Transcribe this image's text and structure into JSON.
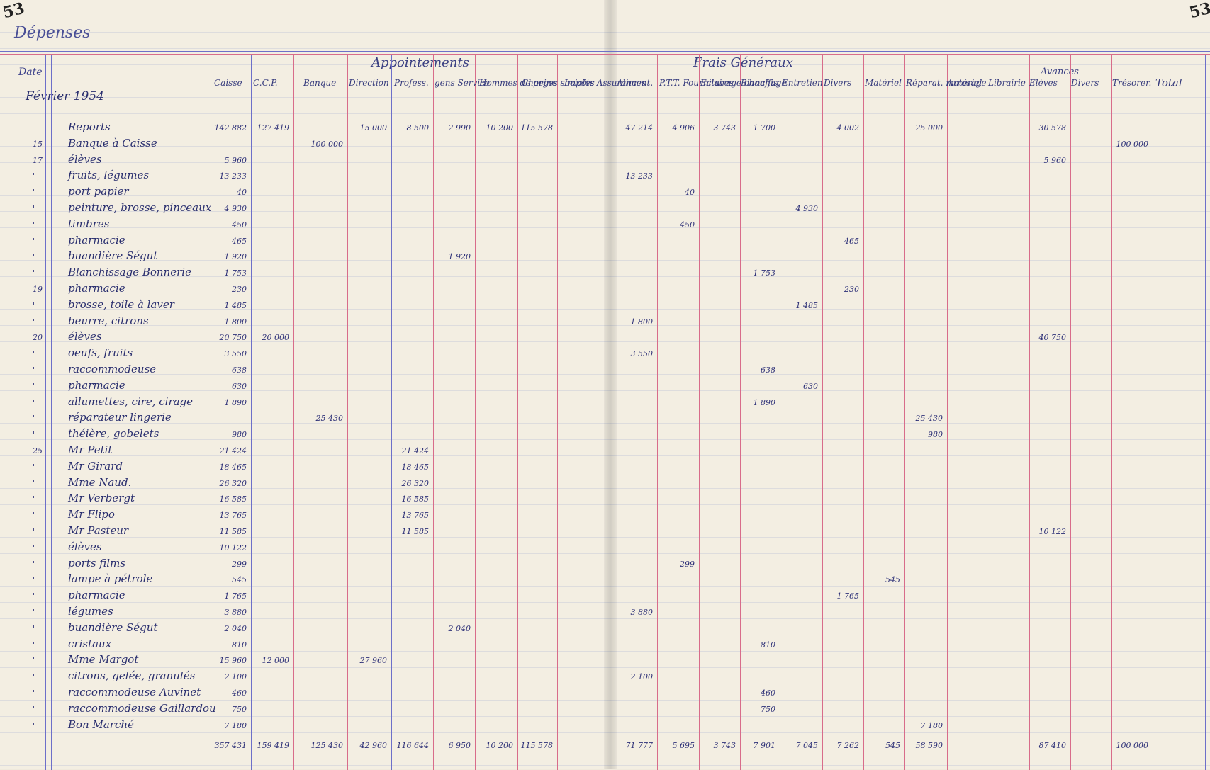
{
  "page_numbers": {
    "left": "53",
    "right": "53"
  },
  "title": "Dépenses",
  "month": "Février 1954",
  "date_header": "Date",
  "headers": {
    "groups": {
      "appointements": "Appointements",
      "frais_generaux": "Frais Généraux",
      "avances": "Avances"
    },
    "columns": [
      "Caisse",
      "C.C.P.",
      "Banque",
      "Direction",
      "Profess.",
      "gens Service",
      "Hommes de peine",
      "Charges sociales",
      "Impôts Assurances",
      "Aliment.",
      "P.T.T. Fournitures",
      "Eclairage chauffage",
      "Blanchis.",
      "Entretien",
      "Divers",
      "Matériel",
      "Réparat. matériel",
      "Arrosage",
      "Librairie",
      "Elèves",
      "Divers",
      "Trésorer.",
      "Total"
    ]
  },
  "rows": [
    {
      "date": "",
      "desc": "Reports",
      "vals": {
        "caisse": "142 882",
        "ccp": "127 419",
        "direction": "15 000",
        "profess": "8 500",
        "gens": "2 990",
        "hommes": "10 200",
        "charges": "115 578",
        "aliment": "47 214",
        "ptt": "4 906",
        "eclairage": "3 743",
        "blanchis": "1 700",
        "divers": "4 002",
        "reparat": "25 000",
        "eleves": "30 578"
      }
    },
    {
      "date": "15",
      "desc": "Banque à Caisse",
      "vals": {
        "banque": "100 000",
        "tresor": "100 000"
      }
    },
    {
      "date": "17",
      "desc": "élèves",
      "vals": {
        "caisse": "5 960",
        "eleves": "5 960"
      }
    },
    {
      "date": "\"",
      "desc": "fruits, légumes",
      "vals": {
        "caisse": "13 233",
        "aliment": "13 233"
      }
    },
    {
      "date": "\"",
      "desc": "port papier",
      "vals": {
        "caisse": "40",
        "ptt": "40"
      }
    },
    {
      "date": "\"",
      "desc": "peinture, brosse, pinceaux",
      "vals": {
        "caisse": "4 930",
        "entretien": "4 930"
      }
    },
    {
      "date": "\"",
      "desc": "timbres",
      "vals": {
        "caisse": "450",
        "ptt": "450"
      }
    },
    {
      "date": "\"",
      "desc": "pharmacie",
      "vals": {
        "caisse": "465",
        "divers": "465"
      }
    },
    {
      "date": "\"",
      "desc": "buandière Ségut",
      "vals": {
        "caisse": "1 920",
        "gens": "1 920"
      }
    },
    {
      "date": "\"",
      "desc": "Blanchissage Bonnerie",
      "vals": {
        "caisse": "1 753",
        "blanchis": "1 753"
      }
    },
    {
      "date": "19",
      "desc": "pharmacie",
      "vals": {
        "caisse": "230",
        "divers": "230"
      }
    },
    {
      "date": "\"",
      "desc": "brosse, toile à laver",
      "vals": {
        "caisse": "1 485",
        "entretien": "1 485"
      }
    },
    {
      "date": "\"",
      "desc": "beurre, citrons",
      "vals": {
        "caisse": "1 800",
        "aliment": "1 800"
      }
    },
    {
      "date": "20",
      "desc": "élèves",
      "vals": {
        "caisse": "20 750",
        "ccp": "20 000",
        "eleves": "40 750"
      }
    },
    {
      "date": "\"",
      "desc": "oeufs, fruits",
      "vals": {
        "caisse": "3 550",
        "aliment": "3 550"
      }
    },
    {
      "date": "\"",
      "desc": "raccommodeuse",
      "vals": {
        "caisse": "638",
        "blanchis": "638"
      }
    },
    {
      "date": "\"",
      "desc": "pharmacie",
      "vals": {
        "caisse": "630",
        "entretien": "630"
      }
    },
    {
      "date": "\"",
      "desc": "allumettes, cire, cirage",
      "vals": {
        "caisse": "1 890",
        "blanchis": "1 890"
      }
    },
    {
      "date": "\"",
      "desc": "réparateur lingerie",
      "vals": {
        "banque": "25 430",
        "reparat": "25 430"
      }
    },
    {
      "date": "\"",
      "desc": "théière, gobelets",
      "vals": {
        "caisse": "980",
        "reparat": "980"
      }
    },
    {
      "date": "25",
      "desc": "Mr Petit",
      "vals": {
        "caisse": "21 424",
        "profess": "21 424"
      }
    },
    {
      "date": "\"",
      "desc": "Mr Girard",
      "vals": {
        "caisse": "18 465",
        "profess": "18 465"
      }
    },
    {
      "date": "\"",
      "desc": "Mme Naud.",
      "vals": {
        "caisse": "26 320",
        "profess": "26 320"
      }
    },
    {
      "date": "\"",
      "desc": "Mr Verbergt",
      "vals": {
        "caisse": "16 585",
        "profess": "16 585"
      }
    },
    {
      "date": "\"",
      "desc": "Mr Flipo",
      "vals": {
        "caisse": "13 765",
        "profess": "13 765"
      }
    },
    {
      "date": "\"",
      "desc": "Mr Pasteur",
      "vals": {
        "caisse": "11 585",
        "profess": "11 585",
        "eleves": "10 122"
      }
    },
    {
      "date": "\"",
      "desc": "élèves",
      "vals": {
        "caisse": "10 122"
      }
    },
    {
      "date": "\"",
      "desc": "ports films",
      "vals": {
        "caisse": "299",
        "ptt": "299"
      }
    },
    {
      "date": "\"",
      "desc": "lampe à pétrole",
      "vals": {
        "caisse": "545",
        "materiel": "545"
      }
    },
    {
      "date": "\"",
      "desc": "pharmacie",
      "vals": {
        "caisse": "1 765",
        "divers": "1 765"
      }
    },
    {
      "date": "\"",
      "desc": "légumes",
      "vals": {
        "caisse": "3 880",
        "aliment": "3 880"
      }
    },
    {
      "date": "\"",
      "desc": "buandière Ségut",
      "vals": {
        "caisse": "2 040",
        "gens": "2 040"
      }
    },
    {
      "date": "\"",
      "desc": "cristaux",
      "vals": {
        "caisse": "810",
        "blanchis": "810"
      }
    },
    {
      "date": "\"",
      "desc": "Mme Margot",
      "vals": {
        "caisse": "15 960",
        "ccp": "12 000",
        "direction": "27 960"
      }
    },
    {
      "date": "\"",
      "desc": "citrons, gelée, granulés",
      "vals": {
        "caisse": "2 100",
        "aliment": "2 100"
      }
    },
    {
      "date": "\"",
      "desc": "raccommodeuse Auvinet",
      "vals": {
        "caisse": "460",
        "blanchis": "460"
      }
    },
    {
      "date": "\"",
      "desc": "raccommodeuse Gaillardou",
      "vals": {
        "caisse": "750",
        "blanchis": "750"
      }
    },
    {
      "date": "\"",
      "desc": "Bon Marché",
      "vals": {
        "caisse": "7 180",
        "reparat": "7 180"
      }
    }
  ],
  "totals": {
    "caisse": "357 431",
    "ccp": "159 419",
    "banque": "125 430",
    "direction": "42 960",
    "profess": "116 644",
    "gens": "6 950",
    "hommes": "10 200",
    "charges": "115 578",
    "aliment": "71 777",
    "ptt": "5 695",
    "eclairage": "3 743",
    "blanchis": "7 901",
    "entretien": "7 045",
    "divers": "7 262",
    "materiel": "545",
    "reparat": "58 590",
    "eleves": "87 410",
    "tresor": "100 000"
  }
}
